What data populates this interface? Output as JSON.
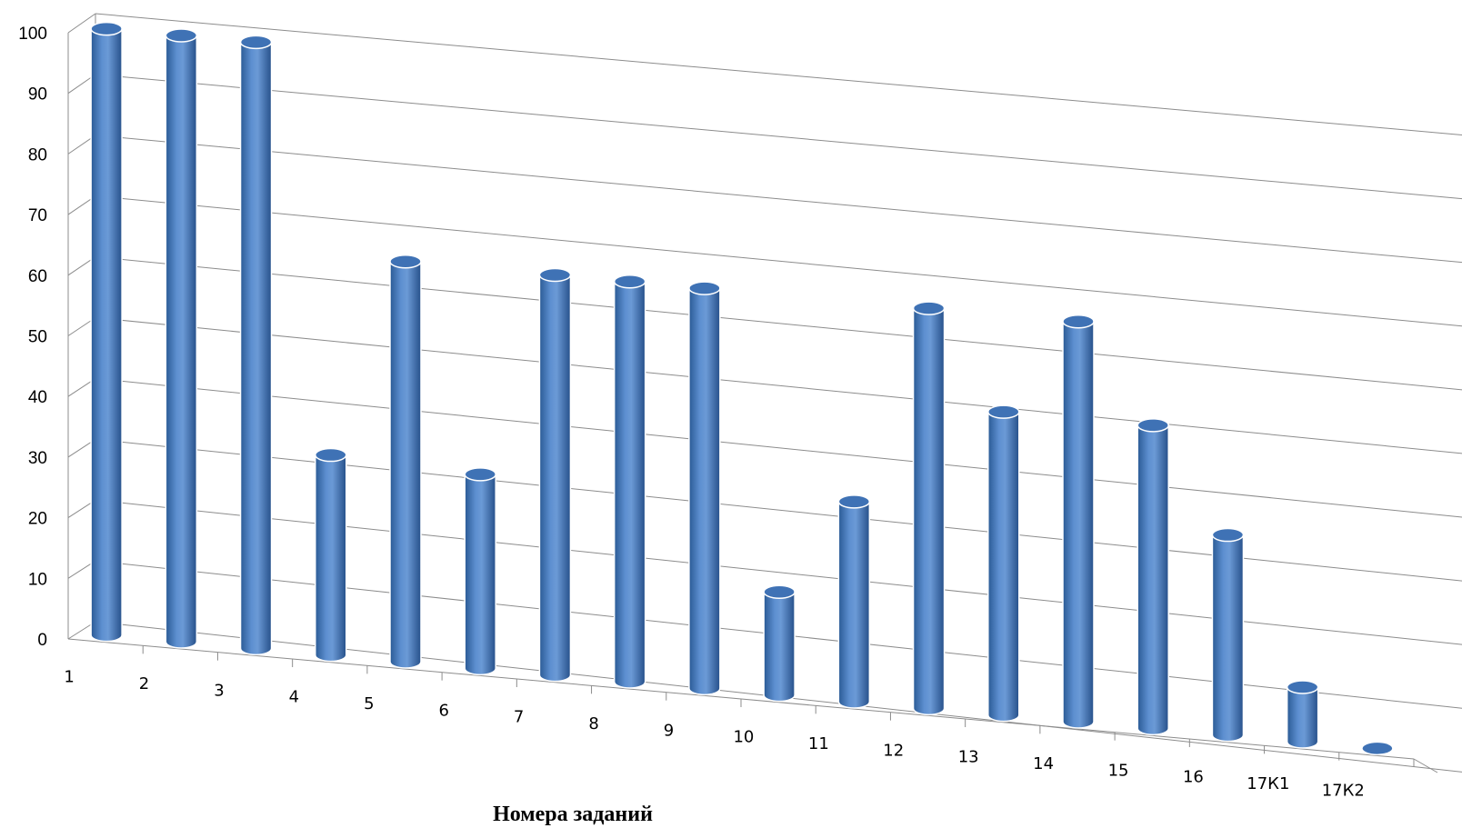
{
  "chart_data": {
    "type": "bar",
    "style": "3d-cylinder",
    "title": "",
    "xlabel": "Номера заданий",
    "ylabel": "",
    "ylim": [
      0,
      100
    ],
    "ytick_step": 10,
    "grid": true,
    "legend": "none",
    "categories": [
      "1",
      "2",
      "3",
      "4",
      "5",
      "6",
      "7",
      "8",
      "9",
      "10",
      "11",
      "12",
      "13",
      "14",
      "15",
      "16",
      "17К1",
      "17К2"
    ],
    "series": [
      {
        "values": [
          100,
          100,
          100,
          33,
          66,
          32,
          66,
          66,
          66,
          17,
          33,
          66,
          50,
          66,
          50,
          33,
          9,
          0
        ]
      }
    ],
    "colors": {
      "bar_body": "#4f81bd",
      "bar_dark": "#2e5f9a",
      "bar_light": "#8fb4e3",
      "grid": "#8c8c8c"
    }
  }
}
